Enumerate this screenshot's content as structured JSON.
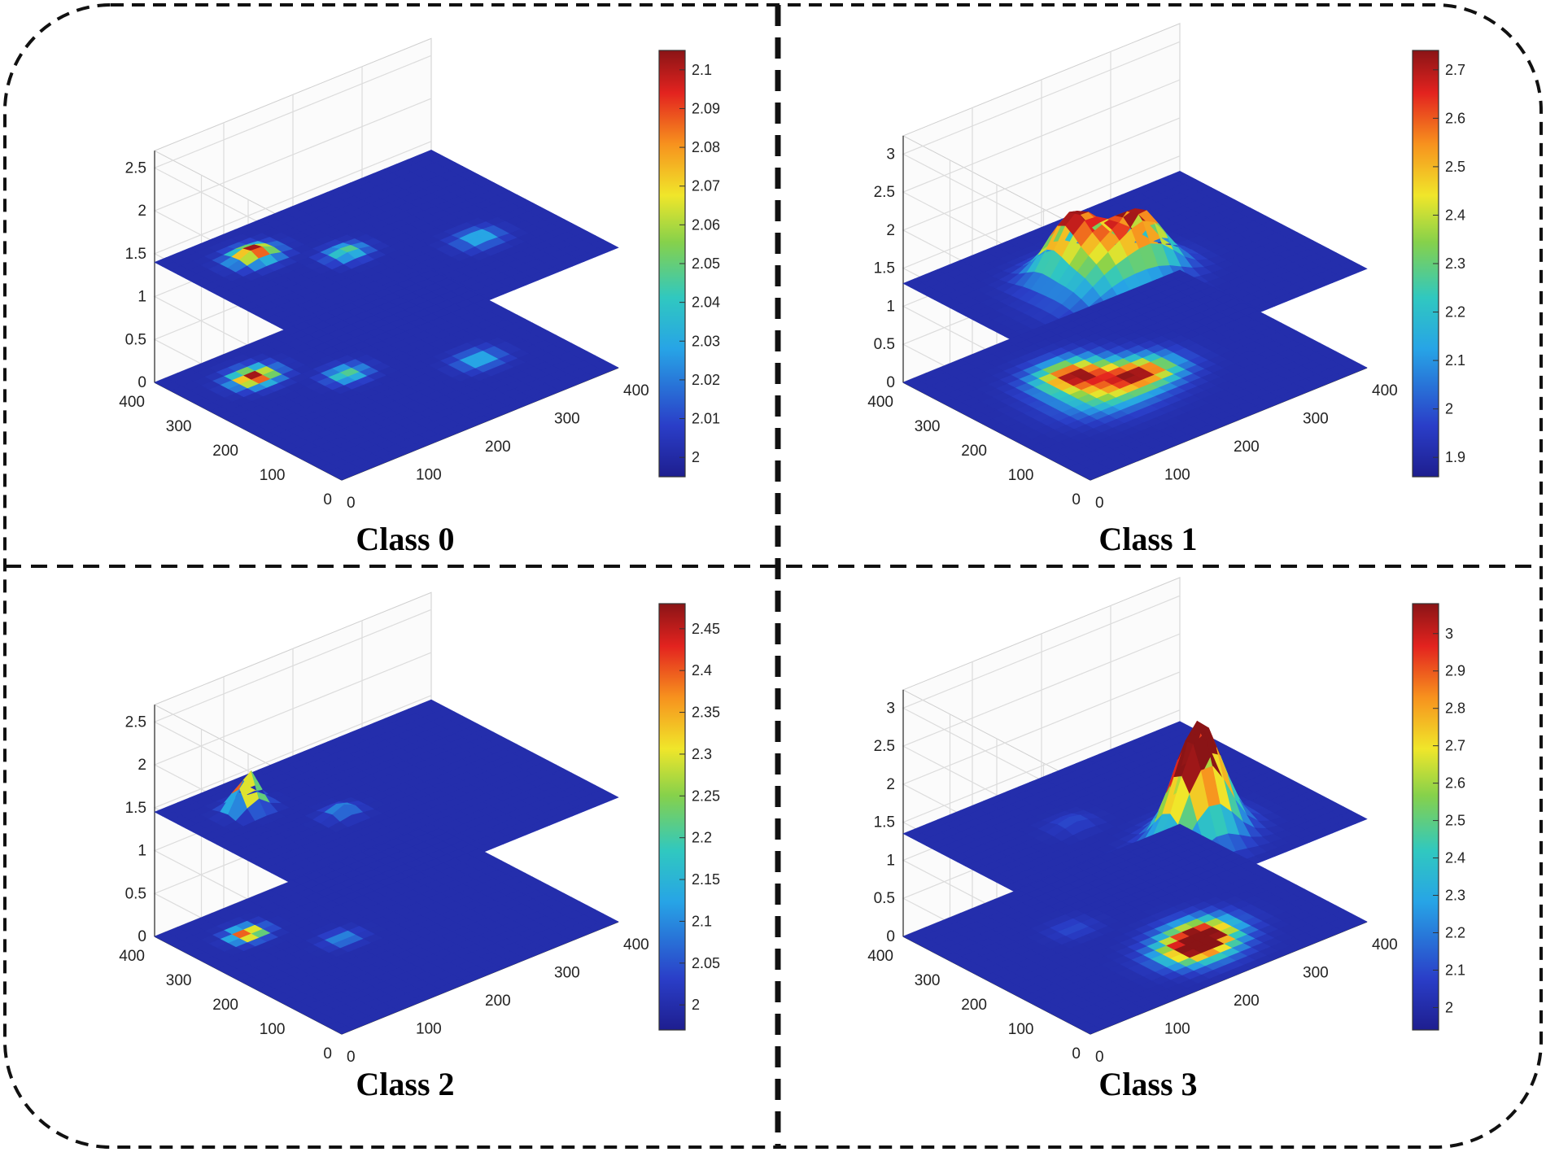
{
  "chart_data": [
    {
      "type": "heatmap",
      "title": "Class 0",
      "surface_type": "3d-surface",
      "zlim": [
        0,
        2.5
      ],
      "z_ticks": [
        "0",
        "0.5",
        "1",
        "1.5",
        "2",
        "2.5"
      ],
      "x_ticks": [
        "0",
        "100",
        "200",
        "300",
        "400"
      ],
      "y_ticks": [
        "0",
        "100",
        "200",
        "300",
        "400"
      ],
      "surface_base_z": 1.4,
      "grid": true,
      "colormap": "jet",
      "colorbar": {
        "min": 1.995,
        "max": 2.105,
        "ticks": [
          "2",
          "2.01",
          "2.02",
          "2.03",
          "2.04",
          "2.05",
          "2.06",
          "2.07",
          "2.08",
          "2.09",
          "2.1"
        ]
      },
      "peaks": [
        {
          "x": 90,
          "y": 320,
          "height": 0.11,
          "spread": 18
        },
        {
          "x": 170,
          "y": 240,
          "height": 0.05,
          "spread": 16
        },
        {
          "x": 300,
          "y": 150,
          "height": 0.035,
          "spread": 18
        }
      ]
    },
    {
      "type": "heatmap",
      "title": "Class 1",
      "surface_type": "3d-surface",
      "zlim": [
        0,
        3
      ],
      "z_ticks": [
        "0",
        "0.5",
        "1",
        "1.5",
        "2",
        "2.5",
        "3"
      ],
      "x_ticks": [
        "0",
        "100",
        "200",
        "300",
        "400"
      ],
      "y_ticks": [
        "0",
        "100",
        "200",
        "300",
        "400"
      ],
      "surface_base_z": 1.3,
      "grid": true,
      "colormap": "jet",
      "colorbar": {
        "min": 1.86,
        "max": 2.74,
        "ticks": [
          "1.9",
          "2",
          "2.1",
          "2.2",
          "2.3",
          "2.4",
          "2.5",
          "2.6",
          "2.7"
        ]
      },
      "peaks": [
        {
          "x": 150,
          "y": 260,
          "height": 0.75,
          "spread": 30
        },
        {
          "x": 210,
          "y": 200,
          "height": 0.7,
          "spread": 30
        },
        {
          "x": 150,
          "y": 190,
          "height": 0.45,
          "spread": 40
        }
      ]
    },
    {
      "type": "heatmap",
      "title": "Class 2",
      "surface_type": "3d-surface",
      "zlim": [
        0,
        2.5
      ],
      "z_ticks": [
        "0",
        "0.5",
        "1",
        "1.5",
        "2",
        "2.5"
      ],
      "x_ticks": [
        "0",
        "100",
        "200",
        "300",
        "400"
      ],
      "y_ticks": [
        "0",
        "100",
        "200",
        "300",
        "400"
      ],
      "surface_base_z": 1.45,
      "grid": true,
      "colormap": "jet",
      "colorbar": {
        "min": 1.97,
        "max": 2.48,
        "ticks": [
          "2",
          "2.05",
          "2.1",
          "2.15",
          "2.2",
          "2.25",
          "2.3",
          "2.35",
          "2.4",
          "2.45"
        ]
      },
      "peaks": [
        {
          "x": 80,
          "y": 320,
          "height": 0.47,
          "spread": 14
        },
        {
          "x": 150,
          "y": 220,
          "height": 0.12,
          "spread": 14
        }
      ]
    },
    {
      "type": "heatmap",
      "title": "Class 3",
      "surface_type": "3d-surface",
      "zlim": [
        0,
        3
      ],
      "z_ticks": [
        "0",
        "0.5",
        "1",
        "1.5",
        "2",
        "2.5",
        "3"
      ],
      "x_ticks": [
        "0",
        "100",
        "200",
        "300",
        "400"
      ],
      "y_ticks": [
        "0",
        "100",
        "200",
        "300",
        "400"
      ],
      "surface_base_z": 1.35,
      "grid": true,
      "colormap": "jet",
      "colorbar": {
        "min": 1.94,
        "max": 3.08,
        "ticks": [
          "2",
          "2.1",
          "2.2",
          "2.3",
          "2.4",
          "2.5",
          "2.6",
          "2.7",
          "2.8",
          "2.9",
          "3"
        ]
      },
      "peaks": [
        {
          "x": 220,
          "y": 100,
          "height": 1.1,
          "spread": 30
        },
        {
          "x": 250,
          "y": 130,
          "height": 0.9,
          "spread": 28
        },
        {
          "x": 150,
          "y": 260,
          "height": 0.1,
          "spread": 18
        }
      ]
    }
  ]
}
